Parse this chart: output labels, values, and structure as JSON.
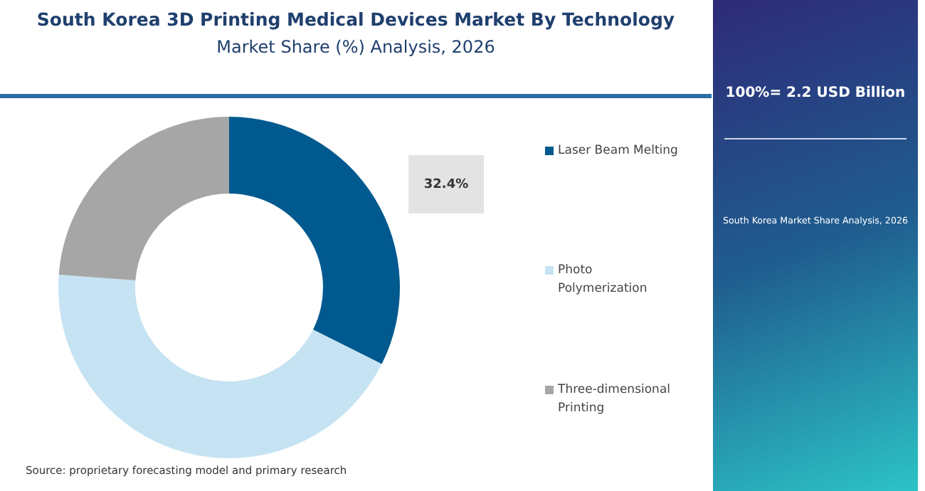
{
  "chart_data": {
    "type": "donut",
    "title": "South Korea 3D Printing Medical Devices Market By Technology",
    "subtitle": "Market Share (%) Analysis, 2026",
    "categories": [
      "Laser Beam Melting",
      "Photo Polymerization",
      "Three-dimensional Printing"
    ],
    "values": [
      32.4,
      43.8,
      23.8
    ],
    "colors": [
      "#005a8f",
      "#c5e3f2",
      "#a6a6a6"
    ],
    "value_labels": [
      "32.4%",
      null,
      null
    ],
    "legend": "right",
    "annotations": [
      "100%= 2.2 USD Billion",
      "South Korea Market Share Analysis, 2026",
      "Source: proprietary forecasting model and primary research"
    ]
  }
}
